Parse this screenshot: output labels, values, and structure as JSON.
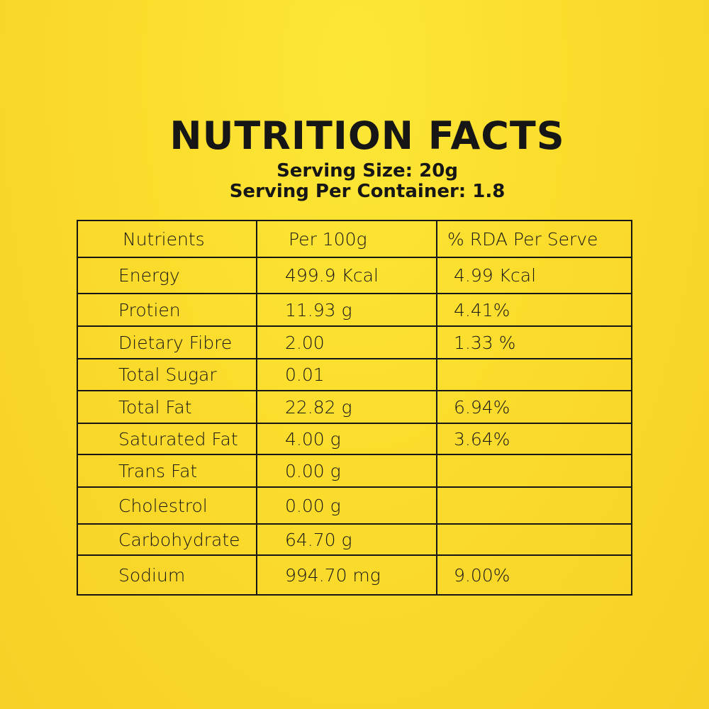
{
  "title": "NUTRITION FACTS",
  "serving_size": "Serving Size: 20g",
  "servings_per_container": "Serving Per Container: 1.8",
  "table": {
    "headers": [
      "Nutrients",
      "Per 100g",
      "% RDA Per Serve"
    ],
    "rows": [
      [
        "Energy",
        "499.9 Kcal",
        "4.99 Kcal"
      ],
      [
        "Protien",
        "11.93 g",
        "4.41%"
      ],
      [
        "Dietary Fibre",
        "2.00",
        "1.33 %"
      ],
      [
        "Total Sugar",
        "0.01",
        ""
      ],
      [
        "Total Fat",
        "22.82 g",
        "6.94%"
      ],
      [
        "Saturated Fat",
        "4.00 g",
        "3.64%"
      ],
      [
        "Trans Fat",
        "0.00 g",
        ""
      ],
      [
        "Cholestrol",
        "0.00 g",
        ""
      ],
      [
        "Carbohydrate",
        "64.70 g",
        ""
      ],
      [
        "Sodium",
        "994.70 mg",
        "9.00%"
      ]
    ]
  }
}
